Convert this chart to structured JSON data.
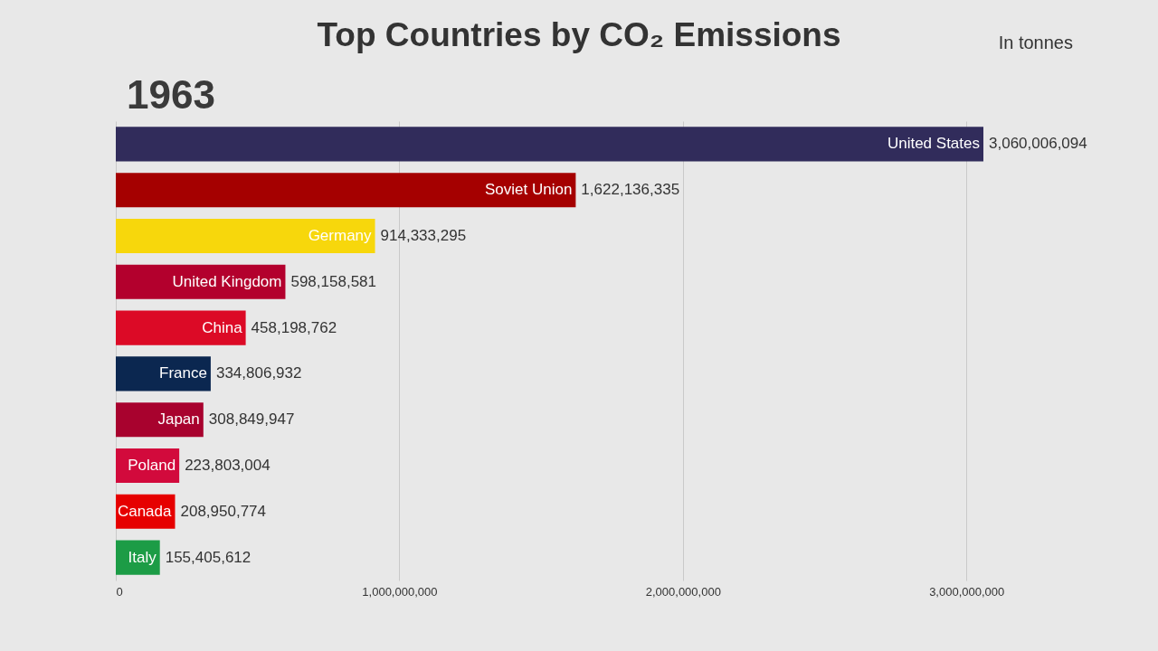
{
  "chart_data": {
    "type": "bar",
    "orientation": "horizontal",
    "title": "Top Countries by CO₂ Emissions",
    "annotations": [
      "In tonnes",
      "1963"
    ],
    "categories": [
      "United States",
      "Soviet Union",
      "Germany",
      "United Kingdom",
      "China",
      "France",
      "Japan",
      "Poland",
      "Canada",
      "Italy"
    ],
    "values": [
      3060006094,
      1622136335,
      914333295,
      598158581,
      458198762,
      334806932,
      308849947,
      223803004,
      208950774,
      155405612
    ],
    "value_labels": [
      "3,060,006,094",
      "1,622,136,335",
      "914,333,295",
      "598,158,581",
      "458,198,762",
      "334,806,932",
      "308,849,947",
      "223,803,004",
      "208,950,774",
      "155,405,612"
    ],
    "colors": [
      "#312c5b",
      "#a50000",
      "#f7d70c",
      "#b3002d",
      "#dc0a26",
      "#0b2750",
      "#a8022e",
      "#d20a3c",
      "#e60000",
      "#1c9c46"
    ],
    "xlim": [
      0,
      3060006094
    ],
    "xticks": [
      0,
      {
        "value": 1000000000,
        "label": "1,000,000,000"
      },
      {
        "value": 2000000000,
        "label": "2,000,000,000"
      },
      {
        "value": 3000000000,
        "label": "3,000,000,000"
      }
    ],
    "grid": "x"
  }
}
